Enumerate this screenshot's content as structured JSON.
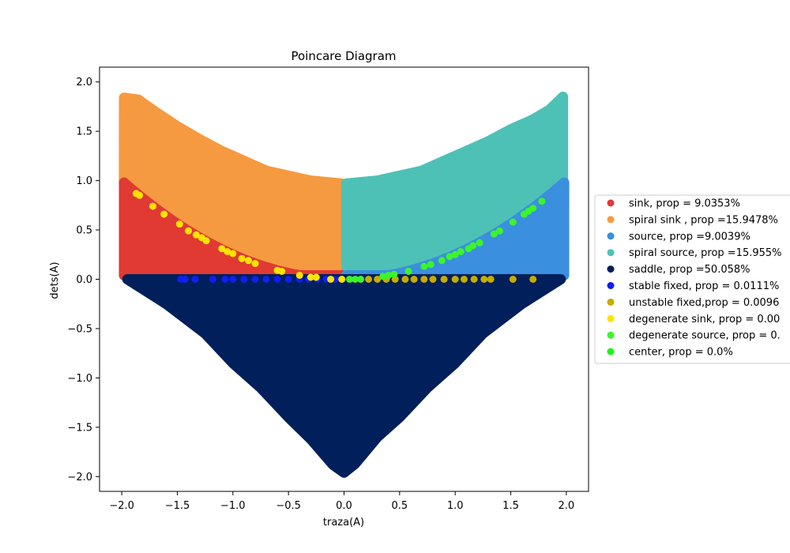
{
  "chart_data": {
    "type": "scatter",
    "title": "Poincare Diagram",
    "xlabel": "traza(A)",
    "ylabel": "dets(A)",
    "xlim": [
      -2.2,
      2.2
    ],
    "ylim": [
      -2.15,
      2.15
    ],
    "xticks": [
      -2.0,
      -1.5,
      -1.0,
      -0.5,
      0.0,
      0.5,
      1.0,
      1.5,
      2.0
    ],
    "xtick_labels": [
      "−2.0",
      "−1.5",
      "−1.0",
      "−0.5",
      "0.0",
      "0.5",
      "1.0",
      "1.5",
      "2.0"
    ],
    "yticks": [
      -2.0,
      -1.5,
      -1.0,
      -0.5,
      0.0,
      0.5,
      1.0,
      1.5,
      2.0
    ],
    "ytick_labels": [
      "−2.0",
      "−1.5",
      "−1.0",
      "−0.5",
      "0.0",
      "0.5",
      "1.0",
      "1.5",
      "2.0"
    ],
    "grid": false,
    "legend_position": "right, outside plot",
    "series": [
      {
        "name": "sink, prop = 9.0353%",
        "color": "#e03a33",
        "region": "sink"
      },
      {
        "name": "spiral sink , prop =15.9478%",
        "color": "#f59a41",
        "region": "spiral-sink"
      },
      {
        "name": "source, prop =9.0039%",
        "color": "#3a8fde",
        "region": "source"
      },
      {
        "name": "spiral source, prop =15.955%",
        "color": "#4ec1b7",
        "region": "spiral-source"
      },
      {
        "name": "saddle, prop =50.058%",
        "color": "#001f5b",
        "region": "saddle"
      },
      {
        "name": "stable fixed, prop = 0.0111%",
        "color": "#0f1ff0",
        "region": "stable-fixed",
        "points": [
          [
            -1.47,
            0
          ],
          [
            -1.43,
            0
          ],
          [
            -1.34,
            0
          ],
          [
            -1.18,
            0
          ],
          [
            -1.07,
            0
          ],
          [
            -1.0,
            0
          ],
          [
            -0.9,
            0
          ],
          [
            -0.8,
            0
          ],
          [
            -0.7,
            0
          ],
          [
            -0.6,
            0
          ],
          [
            -0.5,
            0
          ],
          [
            -0.4,
            0
          ],
          [
            -0.32,
            0
          ],
          [
            -0.24,
            0
          ],
          [
            -0.16,
            0
          ],
          [
            -0.08,
            0
          ]
        ]
      },
      {
        "name": "unstable fixed,prop = 0.0096",
        "color": "#c6ac00",
        "region": "unstable-fixed",
        "points": [
          [
            0.22,
            0
          ],
          [
            0.3,
            0
          ],
          [
            0.38,
            0
          ],
          [
            0.46,
            0
          ],
          [
            0.55,
            0
          ],
          [
            0.63,
            0
          ],
          [
            0.72,
            0
          ],
          [
            0.8,
            0
          ],
          [
            0.9,
            0
          ],
          [
            1.0,
            0
          ],
          [
            1.08,
            0
          ],
          [
            1.17,
            0
          ],
          [
            1.26,
            0
          ],
          [
            1.32,
            0
          ],
          [
            1.52,
            0
          ],
          [
            1.7,
            0
          ]
        ]
      },
      {
        "name": "degenerate sink, prop = 0.00",
        "color": "#ffe300",
        "region": "degenerate-sink",
        "points": [
          [
            -1.87,
            0.87
          ],
          [
            -1.84,
            0.85
          ],
          [
            -1.72,
            0.74
          ],
          [
            -1.62,
            0.66
          ],
          [
            -1.48,
            0.56
          ],
          [
            -1.4,
            0.49
          ],
          [
            -1.33,
            0.45
          ],
          [
            -1.28,
            0.42
          ],
          [
            -1.24,
            0.39
          ],
          [
            -1.1,
            0.31
          ],
          [
            -1.05,
            0.28
          ],
          [
            -1.0,
            0.26
          ],
          [
            -0.92,
            0.21
          ],
          [
            -0.86,
            0.19
          ],
          [
            -0.8,
            0.16
          ],
          [
            -0.6,
            0.09
          ],
          [
            -0.56,
            0.08
          ],
          [
            -0.4,
            0.04
          ],
          [
            -0.3,
            0.02
          ],
          [
            -0.25,
            0.02
          ],
          [
            -0.12,
            0.0
          ],
          [
            -0.02,
            0.0
          ]
        ]
      },
      {
        "name": "degenerate source, prop = 0.",
        "color": "#3cf52a",
        "region": "degenerate-source",
        "points": [
          [
            0.05,
            0.0
          ],
          [
            0.1,
            0.0
          ],
          [
            0.15,
            0.0
          ],
          [
            0.35,
            0.03
          ],
          [
            0.4,
            0.04
          ],
          [
            0.45,
            0.05
          ],
          [
            0.58,
            0.08
          ],
          [
            0.72,
            0.13
          ],
          [
            0.78,
            0.15
          ],
          [
            0.88,
            0.19
          ],
          [
            0.95,
            0.23
          ],
          [
            1.0,
            0.25
          ],
          [
            1.05,
            0.28
          ],
          [
            1.12,
            0.31
          ],
          [
            1.16,
            0.34
          ],
          [
            1.22,
            0.37
          ],
          [
            1.35,
            0.46
          ],
          [
            1.4,
            0.49
          ],
          [
            1.52,
            0.58
          ],
          [
            1.62,
            0.66
          ],
          [
            1.66,
            0.69
          ],
          [
            1.7,
            0.72
          ],
          [
            1.78,
            0.79
          ]
        ]
      },
      {
        "name": "center, prop = 0.0%",
        "color": "#22f21c",
        "region": "center",
        "points": []
      }
    ]
  }
}
